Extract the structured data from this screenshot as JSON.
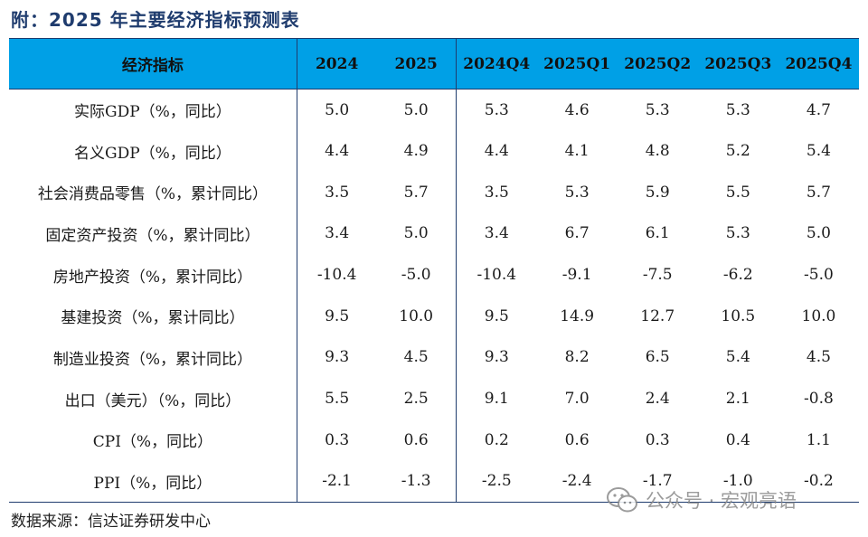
{
  "title": "附：2025 年主要经济指标预测表",
  "table": {
    "headers": [
      "经济指标",
      "2024",
      "2025",
      "2024Q4",
      "2025Q1",
      "2025Q2",
      "2025Q3",
      "2025Q4"
    ],
    "rows": [
      [
        "实际GDP（%，同比）",
        "5.0",
        "5.0",
        "5.3",
        "4.6",
        "5.3",
        "5.3",
        "4.7"
      ],
      [
        "名义GDP（%，同比）",
        "4.4",
        "4.9",
        "4.4",
        "4.1",
        "4.8",
        "5.2",
        "5.4"
      ],
      [
        "社会消费品零售（%，累计同比）",
        "3.5",
        "5.7",
        "3.5",
        "5.3",
        "5.9",
        "5.5",
        "5.7"
      ],
      [
        "固定资产投资（%，累计同比）",
        "3.4",
        "5.0",
        "3.4",
        "6.7",
        "6.1",
        "5.3",
        "5.0"
      ],
      [
        "房地产投资（%，累计同比）",
        "-10.4",
        "-5.0",
        "-10.4",
        "-9.1",
        "-7.5",
        "-6.2",
        "-5.0"
      ],
      [
        "基建投资（%，累计同比）",
        "9.5",
        "10.0",
        "9.5",
        "14.9",
        "12.7",
        "10.5",
        "10.0"
      ],
      [
        "制造业投资（%，累计同比）",
        "9.3",
        "4.5",
        "9.3",
        "8.2",
        "6.5",
        "5.4",
        "4.5"
      ],
      [
        "出口（美元）（%，同比）",
        "5.5",
        "2.5",
        "9.1",
        "7.0",
        "2.4",
        "2.1",
        "-0.8"
      ],
      [
        "CPI（%，同比）",
        "0.3",
        "0.6",
        "0.2",
        "0.6",
        "0.3",
        "0.4",
        "1.1"
      ],
      [
        "PPI（%，同比）",
        "-2.1",
        "-1.3",
        "-2.5",
        "-2.4",
        "-1.7",
        "-1.0",
        "-0.2"
      ]
    ]
  },
  "source": "数据来源：信达证券研发中心",
  "watermark": {
    "text": "公众号 · 宏观亮语",
    "icon": "wechat-icon"
  },
  "colors": {
    "header_bg": "#00a0e6",
    "rule": "#1f3c6e",
    "title": "#1f3c6e"
  }
}
